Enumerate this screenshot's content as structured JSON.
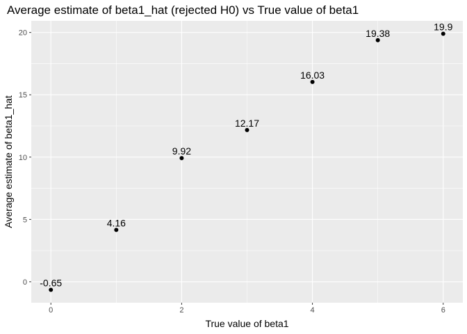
{
  "chart_data": {
    "type": "scatter",
    "title": "Average estimate of beta1_hat (rejected H0) vs True value of beta1",
    "xlabel": "True value of beta1",
    "ylabel": "Average estimate of beta1_hat",
    "x": [
      0,
      1,
      2,
      3,
      4,
      5,
      6
    ],
    "y": [
      -0.65,
      4.16,
      9.92,
      12.17,
      16.03,
      19.38,
      19.9
    ],
    "point_labels": [
      "-0.65",
      "4.16",
      "9.92",
      "12.17",
      "16.03",
      "19.38",
      "19.9"
    ],
    "xlim": [
      -0.3,
      6.3
    ],
    "ylim": [
      -1.68,
      20.93
    ],
    "xticks": [
      0,
      2,
      4,
      6
    ],
    "xtick_labels": [
      "0",
      "2",
      "4",
      "6"
    ],
    "yticks": [
      0,
      5,
      10,
      15,
      20
    ],
    "ytick_labels": [
      "0",
      "5",
      "10",
      "15",
      "20"
    ],
    "grid": true,
    "legend": "none",
    "colors": {
      "panel_background": "#ebebeb",
      "grid_major": "#ffffff",
      "point": "#000000",
      "tick_text": "#4d4d4d"
    }
  }
}
